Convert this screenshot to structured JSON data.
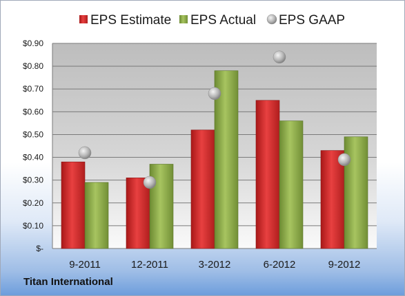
{
  "footer": {
    "company": "Titan International"
  },
  "colors": {
    "estimate": "#d42a2a",
    "actual": "#8aa848",
    "gaap": "#b8b8b8"
  },
  "chart_data": {
    "type": "bar",
    "categories": [
      "9-2011",
      "12-2011",
      "3-2012",
      "6-2012",
      "9-2012"
    ],
    "series": [
      {
        "name": "EPS Estimate",
        "kind": "bar",
        "values": [
          0.38,
          0.31,
          0.52,
          0.65,
          0.43
        ]
      },
      {
        "name": "EPS Actual",
        "kind": "bar",
        "values": [
          0.29,
          0.37,
          0.78,
          0.56,
          0.49
        ]
      },
      {
        "name": "EPS GAAP",
        "kind": "scatter",
        "values": [
          0.42,
          0.29,
          0.68,
          0.84,
          0.39
        ]
      }
    ],
    "ylim": [
      0,
      0.9
    ],
    "yticks": [
      0,
      0.1,
      0.2,
      0.3,
      0.4,
      0.5,
      0.6,
      0.7,
      0.8,
      0.9
    ],
    "ytick_labels": [
      "$-",
      "$0.10",
      "$0.20",
      "$0.30",
      "$0.40",
      "$0.50",
      "$0.60",
      "$0.70",
      "$0.80",
      "$0.90"
    ],
    "grid": true,
    "legend": "top"
  }
}
